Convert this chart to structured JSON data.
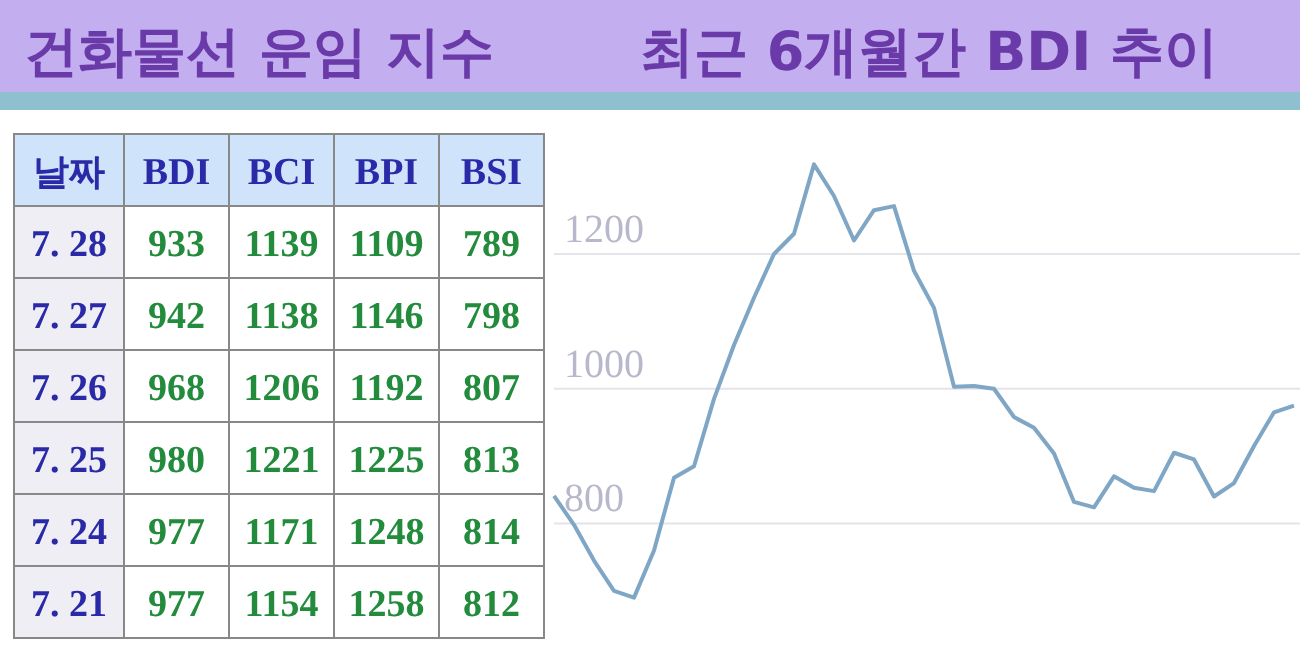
{
  "chart_data": [
    {
      "type": "other",
      "title": "건화물선 운임 지수",
      "xlabel": "날짜",
      "categories": [
        "7. 28",
        "7. 27",
        "7. 26",
        "7. 25",
        "7. 24",
        "7. 21"
      ],
      "data_labels": true,
      "series": [
        {
          "name": "BDI",
          "values": [
            933,
            942,
            968,
            980,
            977,
            977
          ]
        },
        {
          "name": "BCI",
          "values": [
            1139,
            1138,
            1206,
            1221,
            1171,
            1154
          ]
        },
        {
          "name": "BPI",
          "values": [
            1109,
            1146,
            1192,
            1225,
            1248,
            1258
          ]
        },
        {
          "name": "BSI",
          "values": [
            789,
            798,
            807,
            813,
            814,
            812
          ]
        }
      ]
    },
    {
      "type": "line",
      "title": "최근 6개월간 BDI 추이",
      "categories": [
        null,
        null,
        null,
        null,
        null,
        null,
        null,
        null,
        null,
        null,
        null,
        null,
        null,
        null,
        null,
        null,
        null,
        null,
        null,
        null,
        null,
        null,
        null,
        null,
        null,
        null,
        null,
        null,
        null,
        null,
        null,
        null,
        null,
        null,
        null,
        null,
        null,
        null
      ],
      "series": [
        {
          "color": "#7fa6c4",
          "values": [
            841,
            798,
            745,
            700,
            690,
            760,
            868,
            885,
            985,
            1065,
            1135,
            1200,
            1230,
            1333,
            1286,
            1220,
            1265,
            1271,
            1175,
            1120,
            1003,
            1004,
            1000,
            958,
            942,
            904,
            832,
            824,
            870,
            853,
            848,
            905,
            895,
            840,
            860,
            915,
            965,
            975
          ]
        }
      ],
      "ylim": [
        633,
        1384
      ],
      "yticks": [
        800,
        1000,
        1200
      ],
      "grid": "y",
      "tick_labels": "y",
      "marker": "none",
      "line_style": "solid"
    }
  ]
}
